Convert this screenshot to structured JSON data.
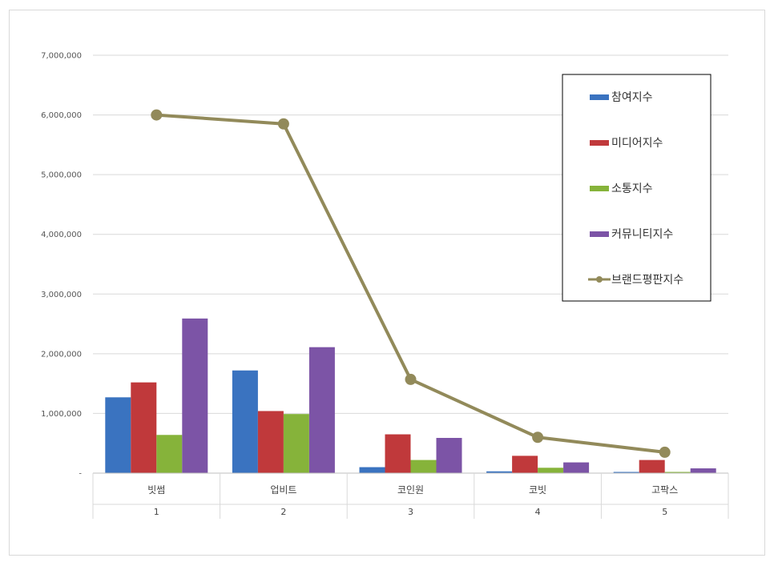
{
  "chart_data": {
    "type": "bar",
    "categories": [
      "빗썸",
      "업비트",
      "코인원",
      "코빗",
      "고팍스"
    ],
    "category_numbers": [
      "1",
      "2",
      "3",
      "4",
      "5"
    ],
    "ylim": [
      0,
      7000000
    ],
    "yticks": [
      {
        "value": 0,
        "label": "-"
      },
      {
        "value": 1000000,
        "label": "1,000,000"
      },
      {
        "value": 2000000,
        "label": "2,000,000"
      },
      {
        "value": 3000000,
        "label": "3,000,000"
      },
      {
        "value": 4000000,
        "label": "4,000,000"
      },
      {
        "value": 5000000,
        "label": "5,000,000"
      },
      {
        "value": 6000000,
        "label": "6,000,000"
      },
      {
        "value": 7000000,
        "label": "7,000,000"
      }
    ],
    "grid": true,
    "legend_position": "top-right",
    "series": [
      {
        "name": "참여지수",
        "type": "bar",
        "color": "#3a73c0",
        "values": [
          1270000,
          1720000,
          100000,
          30000,
          20000
        ]
      },
      {
        "name": "미디어지수",
        "type": "bar",
        "color": "#c0393b",
        "values": [
          1520000,
          1040000,
          650000,
          290000,
          220000
        ]
      },
      {
        "name": "소통지수",
        "type": "bar",
        "color": "#86b33a",
        "values": [
          640000,
          990000,
          220000,
          90000,
          20000
        ]
      },
      {
        "name": "커뮤니티지수",
        "type": "bar",
        "color": "#7c54a6",
        "values": [
          2590000,
          2110000,
          590000,
          180000,
          80000
        ]
      },
      {
        "name": "브랜드평판지수",
        "type": "line",
        "color": "#928a5a",
        "values": [
          6000000,
          5850000,
          1570000,
          600000,
          350000
        ]
      }
    ]
  }
}
